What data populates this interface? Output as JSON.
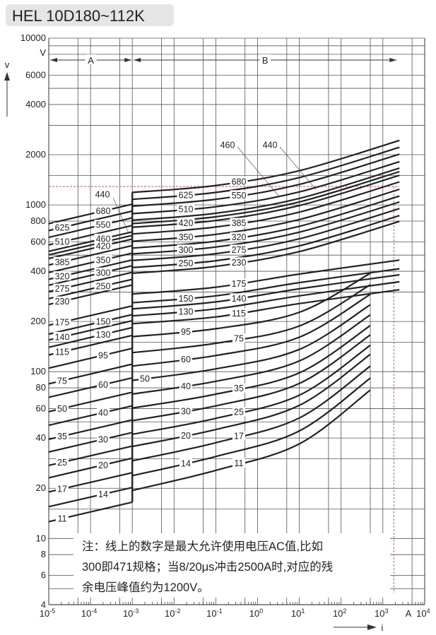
{
  "title": "HEL 10D180~112K",
  "note": {
    "lines": [
      "注：线上的数字是最大允许使用电压AC值,比如",
      "300即471规格；当8/20μs冲击2500A时,对应的残",
      "余电压峰值约为1200V。"
    ]
  },
  "colors": {
    "curve": "#222222",
    "grid": "#555555",
    "reference": "#d9534f",
    "title_bg": "#e5e5e5"
  },
  "chart_data": {
    "type": "line",
    "title": "HEL 10D180~112K",
    "xlabel": "i",
    "ylabel": "v",
    "x_unit": "A",
    "y_unit": "V",
    "x_scale": "log",
    "y_scale": "log",
    "xlim": [
      1e-05,
      10000
    ],
    "ylim": [
      4,
      10000
    ],
    "grid": true,
    "x_ticks": [
      {
        "value": 1e-05,
        "base": "10",
        "exp": "-5"
      },
      {
        "value": 0.0001,
        "base": "10",
        "exp": "-4"
      },
      {
        "value": 0.001,
        "base": "10",
        "exp": "-3"
      },
      {
        "value": 0.01,
        "base": "10",
        "exp": "-2"
      },
      {
        "value": 0.1,
        "base": "10",
        "exp": "-1"
      },
      {
        "value": 1,
        "base": "10",
        "exp": "0"
      },
      {
        "value": 10,
        "base": "10",
        "exp": "1"
      },
      {
        "value": 100,
        "base": "10",
        "exp": "2"
      },
      {
        "value": 1000,
        "base": "10",
        "exp": "3"
      },
      {
        "value": 10000,
        "base": "10",
        "exp": "4"
      }
    ],
    "y_ticks": [
      {
        "value": 10000,
        "label": "10000"
      },
      {
        "value": 6000,
        "label": "6000"
      },
      {
        "value": 4000,
        "label": "4000"
      },
      {
        "value": 2000,
        "label": "2000"
      },
      {
        "value": 1000,
        "label": "1000"
      },
      {
        "value": 800,
        "label": "800"
      },
      {
        "value": 600,
        "label": "600"
      },
      {
        "value": 400,
        "label": "400"
      },
      {
        "value": 200,
        "label": "200"
      },
      {
        "value": 100,
        "label": "100"
      },
      {
        "value": 80,
        "label": "80"
      },
      {
        "value": 60,
        "label": "60"
      },
      {
        "value": 40,
        "label": "40"
      },
      {
        "value": 20,
        "label": "20"
      },
      {
        "value": 10,
        "label": "10"
      },
      {
        "value": 8,
        "label": "8"
      },
      {
        "value": 6,
        "label": "6"
      },
      {
        "value": 4,
        "label": "4"
      }
    ],
    "regions": [
      {
        "label": "A",
        "from": 1e-05,
        "to": 0.001
      },
      {
        "label": "B",
        "from": 0.001,
        "to": 2500
      }
    ],
    "reference": {
      "current": 2500,
      "voltage": 1200
    },
    "series": [
      {
        "name": "11",
        "a": [
          [
            1e-05,
            12.6
          ],
          [
            0.001,
            16.5
          ]
        ],
        "b": [
          [
            0.001,
            19.4
          ],
          [
            0.1,
            25.6
          ],
          [
            10,
            36.9
          ],
          [
            500,
            77.6
          ]
        ]
      },
      {
        "name": "14",
        "a": [
          [
            1e-05,
            15.5
          ],
          [
            0.001,
            20.2
          ]
        ],
        "b": [
          [
            0.001,
            23.8
          ],
          [
            0.1,
            31.0
          ],
          [
            10,
            44.1
          ],
          [
            500,
            91.6
          ]
        ]
      },
      {
        "name": "17",
        "a": [
          [
            1e-05,
            19.0
          ],
          [
            0.001,
            24.8
          ]
        ],
        "b": [
          [
            0.001,
            29.2
          ],
          [
            0.1,
            37.5
          ],
          [
            10,
            52.8
          ],
          [
            500,
            108
          ]
        ]
      },
      {
        "name": "20",
        "a": [
          [
            1e-05,
            23.1
          ],
          [
            0.001,
            30.3
          ]
        ],
        "b": [
          [
            0.001,
            35.6
          ],
          [
            0.1,
            45.0
          ],
          [
            10,
            62.8
          ],
          [
            500,
            127
          ]
        ]
      },
      {
        "name": "25",
        "a": [
          [
            1e-05,
            27.4
          ],
          [
            0.001,
            35.8
          ]
        ],
        "b": [
          [
            0.001,
            42.1
          ],
          [
            0.1,
            52.5
          ],
          [
            10,
            72.3
          ],
          [
            500,
            144
          ]
        ]
      },
      {
        "name": "30",
        "a": [
          [
            1e-05,
            33.0
          ],
          [
            0.001,
            43.2
          ]
        ],
        "b": [
          [
            0.001,
            50.8
          ],
          [
            0.1,
            62.4
          ],
          [
            10,
            85.0
          ],
          [
            500,
            166
          ]
        ]
      },
      {
        "name": "35",
        "a": [
          [
            1e-05,
            39.3
          ],
          [
            0.001,
            51.4
          ]
        ],
        "b": [
          [
            0.001,
            60.5
          ],
          [
            0.1,
            73.3
          ],
          [
            10,
            98.4
          ],
          [
            500,
            189
          ]
        ]
      },
      {
        "name": "40",
        "a": [
          [
            1e-05,
            47.7
          ],
          [
            0.001,
            62.4
          ]
        ],
        "b": [
          [
            0.001,
            73.4
          ],
          [
            0.1,
            87.6
          ],
          [
            10,
            116
          ],
          [
            500,
            219
          ]
        ]
      },
      {
        "name": "50",
        "a": [
          [
            1e-05,
            57.6
          ],
          [
            0.001,
            75.3
          ]
        ],
        "b": [
          [
            0.001,
            88.6
          ],
          [
            0.1,
            104
          ],
          [
            10,
            136
          ],
          [
            500,
            252
          ]
        ]
      },
      {
        "name": "60",
        "a": [
          [
            1e-05,
            70.2
          ],
          [
            0.001,
            91.8
          ]
        ],
        "b": [
          [
            0.001,
            108
          ],
          [
            0.1,
            125
          ],
          [
            10,
            161
          ],
          [
            500,
            291
          ]
        ]
      },
      {
        "name": "75",
        "a": [
          [
            1e-05,
            84.5
          ],
          [
            0.001,
            111
          ]
        ],
        "b": [
          [
            0.001,
            130
          ],
          [
            0.1,
            148
          ],
          [
            10,
            188
          ],
          [
            500,
            332
          ]
        ]
      },
      {
        "name": "95",
        "a": [
          [
            1e-05,
            105
          ],
          [
            0.001,
            138
          ]
        ],
        "b": [
          [
            0.001,
            162
          ],
          [
            0.1,
            181
          ],
          [
            10,
            227
          ],
          [
            500,
            389
          ]
        ]
      },
      {
        "name": "115",
        "a": [
          [
            1e-05,
            126
          ],
          [
            0.001,
            165
          ]
        ],
        "b": [
          [
            0.001,
            194
          ],
          [
            0.1,
            213
          ],
          [
            10,
            256
          ],
          [
            2500,
            310
          ]
        ]
      },
      {
        "name": "130",
        "a": [
          [
            1e-05,
            140
          ],
          [
            0.001,
            184
          ]
        ],
        "b": [
          [
            0.001,
            216
          ],
          [
            0.1,
            238
          ],
          [
            10,
            285
          ],
          [
            2500,
            346
          ]
        ]
      },
      {
        "name": "140",
        "a": [
          [
            1e-05,
            155
          ],
          [
            0.001,
            202
          ]
        ],
        "b": [
          [
            0.001,
            238
          ],
          [
            0.1,
            262
          ],
          [
            10,
            314
          ],
          [
            2500,
            381
          ]
        ]
      },
      {
        "name": "150",
        "a": [
          [
            1e-05,
            168
          ],
          [
            0.001,
            220
          ]
        ],
        "b": [
          [
            0.001,
            259
          ],
          [
            0.1,
            285
          ],
          [
            10,
            342
          ],
          [
            2500,
            414
          ]
        ]
      },
      {
        "name": "175",
        "a": [
          [
            1e-05,
            190
          ],
          [
            0.001,
            248
          ]
        ],
        "b": [
          [
            0.001,
            292
          ],
          [
            0.1,
            321
          ],
          [
            10,
            385
          ],
          [
            2500,
            467
          ]
        ]
      },
      {
        "name": "230",
        "a": [
          [
            1e-05,
            253
          ],
          [
            0.001,
            331
          ]
        ],
        "b": [
          [
            0.001,
            389
          ],
          [
            0.1,
            428
          ],
          [
            10,
            525
          ],
          [
            2500,
            797
          ]
        ]
      },
      {
        "name": "250",
        "a": [
          [
            1e-05,
            274
          ],
          [
            0.001,
            358
          ]
        ],
        "b": [
          [
            0.001,
            421
          ],
          [
            0.1,
            463
          ],
          [
            10,
            568
          ],
          [
            2500,
            863
          ]
        ]
      },
      {
        "name": "275",
        "a": [
          [
            1e-05,
            302
          ],
          [
            0.001,
            394
          ]
        ],
        "b": [
          [
            0.001,
            464
          ],
          [
            0.1,
            510
          ],
          [
            10,
            626
          ],
          [
            2500,
            951
          ]
        ]
      },
      {
        "name": "300",
        "a": [
          [
            1e-05,
            330
          ],
          [
            0.001,
            432
          ]
        ],
        "b": [
          [
            0.001,
            508
          ],
          [
            0.1,
            559
          ],
          [
            10,
            686
          ],
          [
            2500,
            1041
          ]
        ]
      },
      {
        "name": "320",
        "a": [
          [
            1e-05,
            358
          ],
          [
            0.001,
            468
          ]
        ],
        "b": [
          [
            0.001,
            551
          ],
          [
            0.1,
            606
          ],
          [
            10,
            744
          ],
          [
            2500,
            1130
          ]
        ]
      },
      {
        "name": "350",
        "a": [
          [
            1e-05,
            393
          ],
          [
            0.001,
            514
          ]
        ],
        "b": [
          [
            0.001,
            605
          ],
          [
            0.1,
            666
          ],
          [
            10,
            817
          ],
          [
            2500,
            1240
          ]
        ]
      },
      {
        "name": "385",
        "a": [
          [
            1e-05,
            436
          ],
          [
            0.001,
            570
          ]
        ],
        "b": [
          [
            0.001,
            670
          ],
          [
            0.1,
            737
          ],
          [
            10,
            905
          ],
          [
            2500,
            1374
          ]
        ]
      },
      {
        "name": "420",
        "a": [
          [
            1e-05,
            477
          ],
          [
            0.001,
            624
          ]
        ],
        "b": [
          [
            0.001,
            734
          ],
          [
            0.1,
            807
          ],
          [
            10,
            991
          ],
          [
            2500,
            1505
          ]
        ]
      },
      {
        "name": "440",
        "a": [
          [
            1e-05,
            502
          ],
          [
            0.001,
            656
          ]
        ],
        "b": [
          [
            0.001,
            772
          ],
          [
            0.1,
            849
          ],
          [
            10,
            1042
          ],
          [
            2500,
            1583
          ]
        ]
      },
      {
        "name": "460",
        "a": [
          [
            1e-05,
            527
          ],
          [
            0.001,
            689
          ]
        ],
        "b": [
          [
            0.001,
            810
          ],
          [
            0.1,
            891
          ],
          [
            10,
            1094
          ],
          [
            2500,
            1661
          ]
        ]
      },
      {
        "name": "510",
        "a": [
          [
            1e-05,
            576
          ],
          [
            0.001,
            753
          ]
        ],
        "b": [
          [
            0.001,
            886
          ],
          [
            0.1,
            975
          ],
          [
            10,
            1196
          ],
          [
            2500,
            1816
          ]
        ]
      },
      {
        "name": "550",
        "a": [
          [
            1e-05,
            639
          ],
          [
            0.001,
            836
          ]
        ],
        "b": [
          [
            0.001,
            983
          ],
          [
            0.1,
            1081
          ],
          [
            10,
            1327
          ],
          [
            2500,
            2015
          ]
        ]
      },
      {
        "name": "625",
        "a": [
          [
            1e-05,
            702
          ],
          [
            0.001,
            918
          ]
        ],
        "b": [
          [
            0.001,
            1080
          ],
          [
            0.1,
            1188
          ],
          [
            10,
            1458
          ],
          [
            2500,
            2214
          ]
        ]
      },
      {
        "name": "680",
        "a": [
          [
            1e-05,
            772
          ],
          [
            0.001,
            1010
          ]
        ],
        "b": [
          [
            0.001,
            1188
          ],
          [
            0.1,
            1307
          ],
          [
            10,
            1604
          ],
          [
            2500,
            2435
          ]
        ]
      }
    ]
  }
}
